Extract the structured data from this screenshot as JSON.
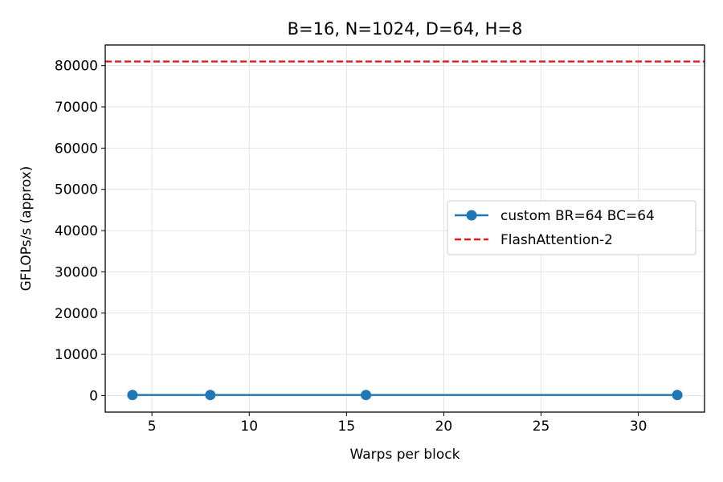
{
  "chart_data": {
    "type": "line",
    "title": "B=16, N=1024, D=64, H=8",
    "xlabel": "Warps per block",
    "ylabel": "GFLOPs/s (approx)",
    "xlim": [
      2.6,
      33.4
    ],
    "ylim": [
      -4000,
      85000
    ],
    "xticks": [
      5,
      10,
      15,
      20,
      25,
      30
    ],
    "yticks": [
      0,
      10000,
      20000,
      30000,
      40000,
      50000,
      60000,
      70000,
      80000
    ],
    "grid": true,
    "legend_position": "center-right",
    "series": [
      {
        "name": "custom BR=64 BC=64",
        "color": "#1f77b4",
        "style": "solid-line-with-circle-markers",
        "x": [
          4,
          8,
          16,
          32
        ],
        "y": [
          150,
          150,
          150,
          150
        ]
      }
    ],
    "reference_lines": [
      {
        "name": "FlashAttention-2",
        "color": "#e41a1c",
        "style": "dashed-horizontal",
        "y": 81000
      }
    ]
  }
}
